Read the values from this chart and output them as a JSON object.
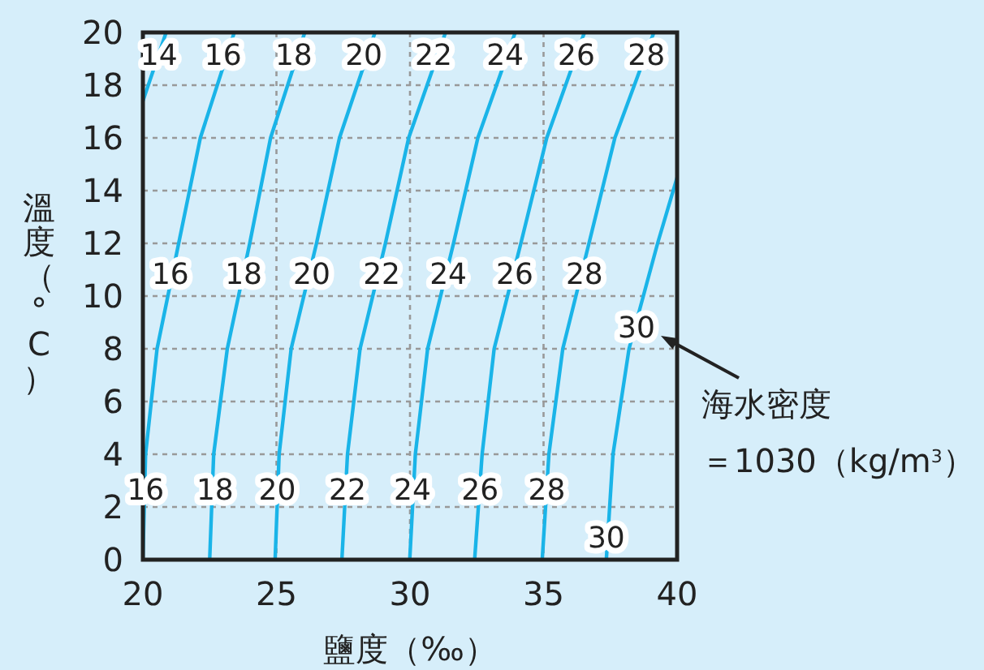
{
  "chart_data": {
    "type": "line",
    "xlabel": "鹽度（‰）",
    "ylabel": "溫度（°C）",
    "xlim": [
      20,
      40
    ],
    "ylim": [
      0,
      20
    ],
    "xticks": [
      20,
      25,
      30,
      35,
      40
    ],
    "yticks": [
      0,
      2,
      4,
      6,
      8,
      10,
      12,
      14,
      16,
      18,
      20
    ],
    "grid": true,
    "marker": "none",
    "line_style": "solid",
    "series": [
      {
        "color": "#1ab4e8",
        "x": [
          20.0,
          20.87
        ],
        "values": [
          17.4,
          20
        ]
      },
      {
        "color": "#1ab4e8",
        "x": [
          20.0,
          20.1,
          20.53,
          21.34,
          22.15,
          23.42
        ],
        "values": [
          0,
          4,
          8,
          12,
          16,
          20
        ]
      },
      {
        "color": "#1ab4e8",
        "x": [
          22.5,
          22.65,
          23.16,
          24.0,
          24.78,
          26.06
        ],
        "values": [
          0,
          4,
          8,
          12,
          16,
          20
        ]
      },
      {
        "color": "#1ab4e8",
        "x": [
          24.95,
          25.1,
          25.55,
          26.5,
          27.36,
          28.69
        ],
        "values": [
          0,
          4,
          8,
          12,
          16,
          20
        ]
      },
      {
        "color": "#1ab4e8",
        "x": [
          27.45,
          27.66,
          28.13,
          29.08,
          29.95,
          31.33
        ],
        "values": [
          0,
          4,
          8,
          12,
          16,
          20
        ]
      },
      {
        "color": "#1ab4e8",
        "x": [
          29.99,
          30.2,
          30.66,
          31.63,
          32.54,
          33.94
        ],
        "values": [
          0,
          4,
          8,
          12,
          16,
          20
        ]
      },
      {
        "color": "#1ab4e8",
        "x": [
          32.42,
          32.7,
          33.15,
          34.15,
          35.12,
          36.53
        ],
        "values": [
          0,
          4,
          8,
          12,
          16,
          20
        ]
      },
      {
        "color": "#1ab4e8",
        "x": [
          34.95,
          35.2,
          35.72,
          36.7,
          37.67,
          39.13
        ],
        "values": [
          0,
          4,
          8,
          12,
          16,
          20
        ]
      },
      {
        "color": "#1ab4e8",
        "x": [
          37.35,
          37.6,
          38.2,
          39.27,
          40
        ],
        "values": [
          0,
          4,
          8,
          12,
          14.5
        ]
      }
    ],
    "annotations": [
      {
        "text": "14",
        "x": 20.6,
        "y": 19.2
      },
      {
        "text": "16",
        "x": 23.0,
        "y": 19.2
      },
      {
        "text": "18",
        "x": 25.65,
        "y": 19.2
      },
      {
        "text": "20",
        "x": 28.27,
        "y": 19.2
      },
      {
        "text": "22",
        "x": 30.88,
        "y": 19.2
      },
      {
        "text": "24",
        "x": 33.56,
        "y": 19.2
      },
      {
        "text": "26",
        "x": 36.23,
        "y": 19.2
      },
      {
        "text": "28",
        "x": 38.85,
        "y": 19.2
      },
      {
        "text": "16",
        "x": 21.03,
        "y": 10.9
      },
      {
        "text": "18",
        "x": 23.77,
        "y": 10.9
      },
      {
        "text": "20",
        "x": 26.32,
        "y": 10.9
      },
      {
        "text": "22",
        "x": 28.94,
        "y": 10.9
      },
      {
        "text": "24",
        "x": 31.43,
        "y": 10.9
      },
      {
        "text": "26",
        "x": 33.92,
        "y": 10.9
      },
      {
        "text": "28",
        "x": 36.53,
        "y": 10.9
      },
      {
        "text": "30",
        "x": 38.48,
        "y": 8.86
      },
      {
        "text": "16",
        "x": 20.1,
        "y": 2.7
      },
      {
        "text": "18",
        "x": 22.7,
        "y": 2.7
      },
      {
        "text": "20",
        "x": 25.03,
        "y": 2.7
      },
      {
        "text": "22",
        "x": 27.66,
        "y": 2.7
      },
      {
        "text": "24",
        "x": 30.09,
        "y": 2.7
      },
      {
        "text": "26",
        "x": 32.62,
        "y": 2.7
      },
      {
        "text": "28",
        "x": 35.12,
        "y": 2.7
      },
      {
        "text": "30",
        "x": 37.35,
        "y": 0.88
      },
      "海水密度＝1030（kg/m$^{3}$）"
    ]
  }
}
